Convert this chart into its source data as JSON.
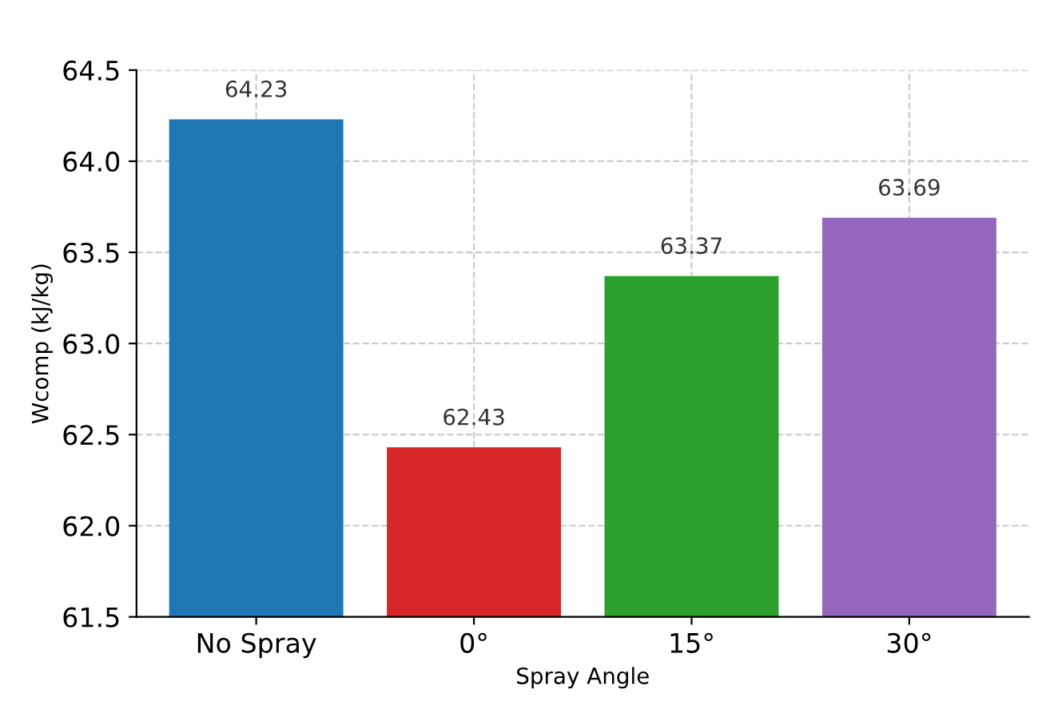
{
  "chart_data": {
    "type": "bar",
    "xlabel": "Spray Angle",
    "ylabel": "Wcomp (kJ/kg)",
    "categories": [
      "No Spray",
      "0°",
      "15°",
      "30°"
    ],
    "values": [
      64.23,
      62.43,
      63.37,
      63.69
    ],
    "colors": [
      "#1f77b4",
      "#d62728",
      "#2ca02c",
      "#9467bd"
    ],
    "ylim": [
      61.5,
      64.5
    ],
    "yticks": [
      {
        "value": 61.5,
        "label": "61.5"
      },
      {
        "value": 62.0,
        "label": "62.0"
      },
      {
        "value": 62.5,
        "label": "62.5"
      },
      {
        "value": 63.0,
        "label": "63.0"
      },
      {
        "value": 63.5,
        "label": "63.5"
      },
      {
        "value": 64.0,
        "label": "64.0"
      },
      {
        "value": 64.5,
        "label": "64.5"
      }
    ],
    "grid": true,
    "data_labels": true
  }
}
